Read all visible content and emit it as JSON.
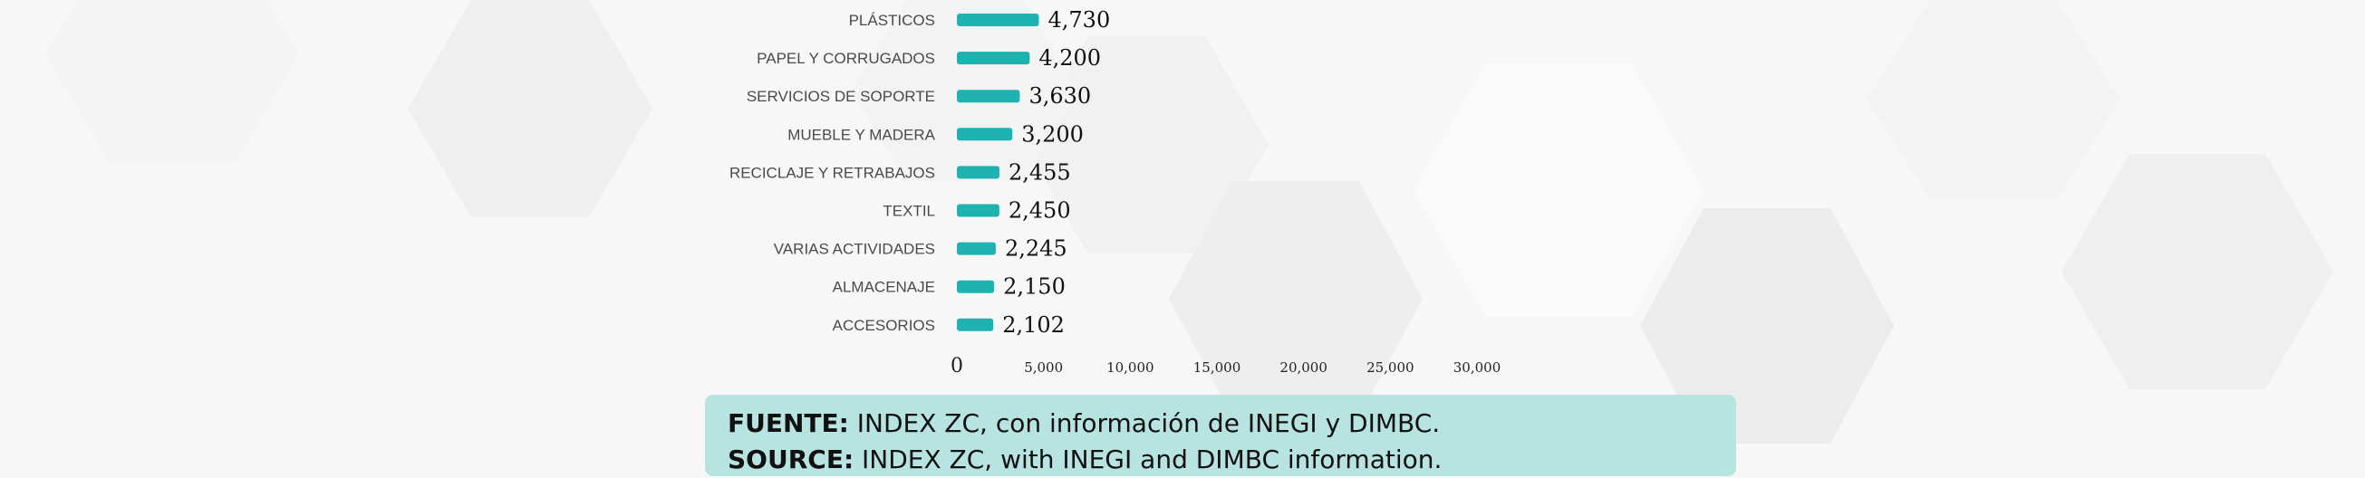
{
  "colors": {
    "bar": "#1eb3b1",
    "source_box": "#b7e3e1",
    "background": "#f7f7f7"
  },
  "chart_data": {
    "type": "bar",
    "orientation": "horizontal",
    "categories": [
      "PLÁSTICOS",
      "PAPEL Y CORRUGADOS",
      "SERVICIOS DE SOPORTE",
      "MUEBLE Y MADERA",
      "RECICLAJE Y RETRABAJOS",
      "TEXTIL",
      "VARIAS ACTIVIDADES",
      "ALMACENAJE",
      "ACCESORIOS"
    ],
    "values": [
      4730,
      4200,
      3630,
      3200,
      2455,
      2450,
      2245,
      2150,
      2102
    ],
    "value_labels": [
      "4,730",
      "4,200",
      "3,630",
      "3,200",
      "2,455",
      "2,450",
      "2,245",
      "2,150",
      "2,102"
    ],
    "xlim": [
      0,
      30000
    ],
    "xticks": [
      0,
      5000,
      10000,
      15000,
      20000,
      25000,
      30000
    ],
    "xtick_labels": [
      "0",
      "5,000",
      "10,000",
      "15,000",
      "20,000",
      "25,000",
      "30,000"
    ],
    "grid": false,
    "legend": "none"
  },
  "source": {
    "line1_key": "FUENTE:",
    "line1_text": " INDEX ZC, con información de INEGI y DIMBC.",
    "line2_key": "SOURCE:",
    "line2_text": " INDEX ZC, with INEGI and DIMBC information."
  }
}
